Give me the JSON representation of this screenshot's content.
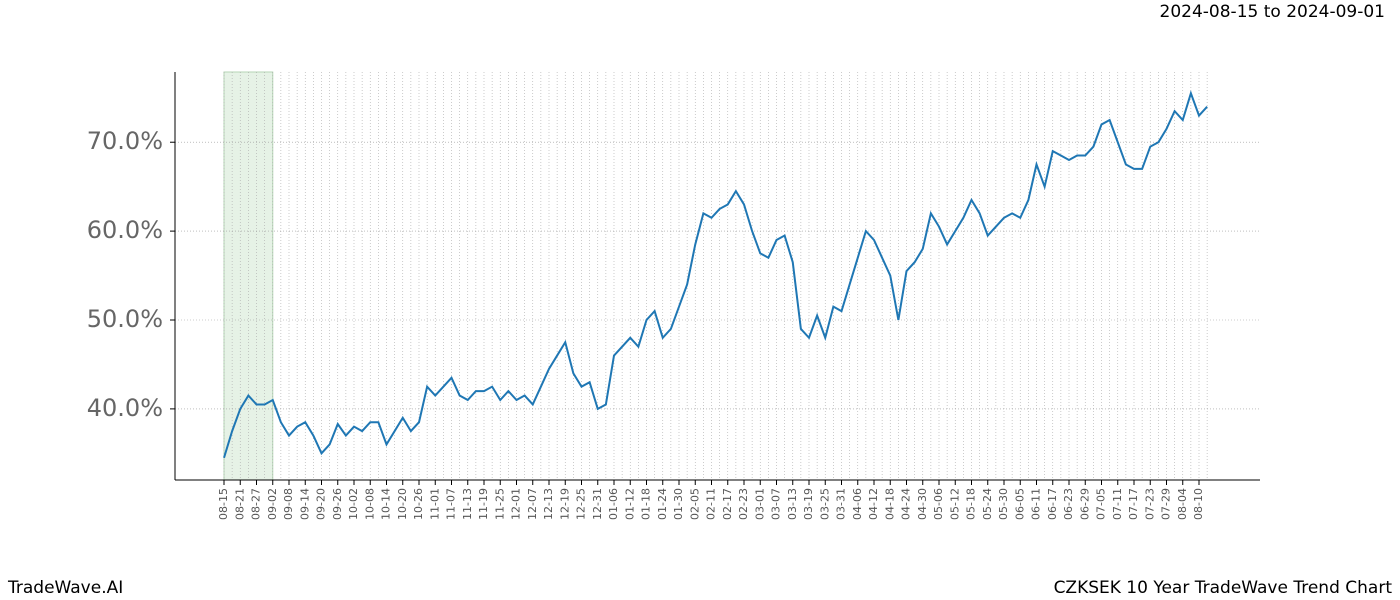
{
  "chart_data": {
    "type": "line",
    "title": "CZKSEK 10 Year TradeWave Trend Chart",
    "subtitle": "2024-08-15 to 2024-09-01",
    "brand": "TradeWave.AI",
    "highlight": {
      "from": "08-15",
      "to": "09-02",
      "color": "#e6f2e6"
    },
    "color": "#1f77b4",
    "grid": true,
    "categories": [
      "08-15",
      null,
      "08-21",
      null,
      "08-27",
      null,
      "09-02",
      null,
      "09-08",
      null,
      "09-14",
      null,
      "09-20",
      null,
      "09-26",
      null,
      "10-02",
      null,
      "10-08",
      null,
      "10-14",
      null,
      "10-20",
      null,
      "10-26",
      null,
      "11-01",
      null,
      "11-07",
      null,
      "11-13",
      null,
      "11-19",
      null,
      "11-25",
      null,
      "12-01",
      null,
      "12-07",
      null,
      "12-13",
      null,
      "12-19",
      null,
      "12-25",
      null,
      "12-31",
      null,
      "01-06",
      null,
      "01-12",
      null,
      "01-18",
      null,
      "01-24",
      null,
      "01-30",
      null,
      "02-05",
      null,
      "02-11",
      null,
      "02-17",
      null,
      "02-23",
      null,
      "03-01",
      null,
      "03-07",
      null,
      "03-13",
      null,
      "03-19",
      null,
      "03-25",
      null,
      "03-31",
      null,
      "04-06",
      null,
      "04-12",
      null,
      "04-18",
      null,
      "04-24",
      null,
      "04-30",
      null,
      "05-06",
      null,
      "05-12",
      null,
      "05-18",
      null,
      "05-24",
      null,
      "05-30",
      null,
      "06-05",
      null,
      "06-11",
      null,
      "06-17",
      null,
      "06-23",
      null,
      "06-29",
      null,
      "07-05",
      null,
      "07-11",
      null,
      "07-17",
      null,
      "07-23",
      null,
      "07-29",
      null,
      "08-04",
      null,
      "08-10",
      null
    ],
    "values": [
      34.5,
      37.5,
      40,
      41.5,
      40.5,
      40.5,
      41,
      38.5,
      37,
      38,
      38.5,
      37,
      35,
      36,
      38.3,
      37,
      38,
      37.5,
      38.5,
      38.5,
      36,
      37.5,
      39,
      37.5,
      38.5,
      42.5,
      41.5,
      42.5,
      43.5,
      41.5,
      41,
      42,
      42,
      42.5,
      41,
      42,
      41,
      41.5,
      40.5,
      42.5,
      44.5,
      46,
      47.5,
      44,
      42.5,
      43,
      40,
      40.5,
      46,
      47,
      48,
      47,
      50,
      51,
      48,
      49,
      51.5,
      54,
      58.5,
      62,
      61.5,
      62.5,
      63,
      64.5,
      63,
      60,
      57.5,
      57,
      59,
      59.5,
      56.5,
      49,
      48,
      50.5,
      48,
      51.5,
      51,
      54,
      57,
      60,
      59,
      57,
      55,
      50,
      55.5,
      56.5,
      58,
      62,
      60.5,
      58.5,
      60,
      61.5,
      63.5,
      62,
      59.5,
      60.5,
      61.5,
      62,
      61.5,
      63.5,
      67.5,
      65,
      69,
      68.5,
      68,
      68.5,
      68.5,
      69.5,
      72,
      72.5,
      70,
      67.5,
      67,
      67,
      69.5,
      70,
      71.5,
      73.5,
      72.5,
      75.5,
      73,
      74
    ],
    "ylim": [
      32,
      77.9
    ],
    "yticks": [
      {
        "value": 40,
        "label": "40.0%"
      },
      {
        "value": 50,
        "label": "50.0%"
      },
      {
        "value": 60,
        "label": "60.0%"
      },
      {
        "value": 70,
        "label": "70.0%"
      }
    ]
  }
}
